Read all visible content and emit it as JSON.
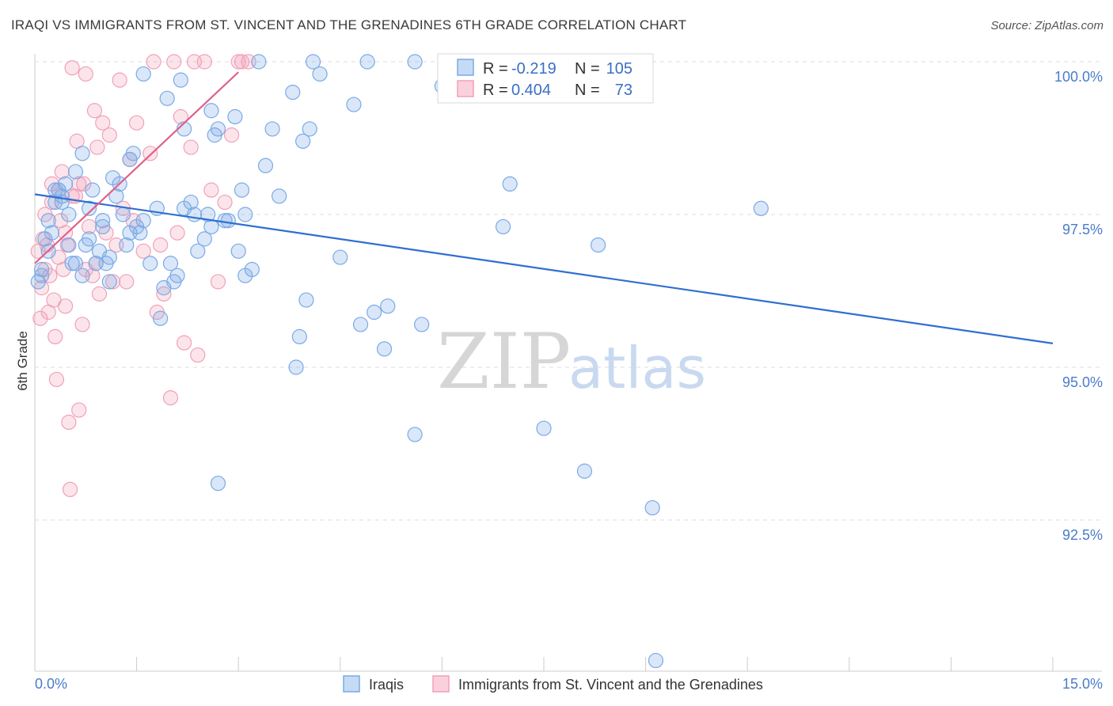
{
  "chart_data": {
    "type": "scatter",
    "title": "IRAQI VS IMMIGRANTS FROM ST. VINCENT AND THE GRENADINES 6TH GRADE CORRELATION CHART",
    "source": "Source: ZipAtlas.com",
    "ylabel": "6th Grade",
    "xlabel": "",
    "xlim": [
      0.0,
      15.0
    ],
    "ylim": [
      90.2,
      100.5
    ],
    "x_tick_labels": [
      "0.0%",
      "15.0%"
    ],
    "y_ticks": [
      100.0,
      97.5,
      95.0,
      92.5
    ],
    "y_tick_labels": [
      "100.0%",
      "97.5%",
      "95.0%",
      "92.5%"
    ],
    "grid": "horizontal dashed",
    "legend": {
      "rows": [
        {
          "r_label": "R =",
          "r_value": "-0.219",
          "n_label": "N =",
          "n_value": "105",
          "color": "#7aaae6"
        },
        {
          "r_label": "R =",
          "r_value": "0.404",
          "n_label": "N =",
          "n_value": "73",
          "color": "#f2a0b8"
        }
      ]
    },
    "watermark": {
      "zip": "ZIP",
      "atlas": "atlas"
    },
    "series": [
      {
        "name": "Iraqis",
        "color": "#7aaae6",
        "line_color": "#2f6fd0",
        "trend": {
          "x": [
            0.0,
            15.0
          ],
          "y": [
            97.83,
            95.39
          ]
        },
        "points": [
          [
            0.05,
            96.4
          ],
          [
            0.1,
            96.5
          ],
          [
            0.15,
            97.1
          ],
          [
            0.2,
            96.9
          ],
          [
            0.25,
            97.2
          ],
          [
            0.3,
            97.7
          ],
          [
            0.35,
            97.9
          ],
          [
            0.4,
            97.7
          ],
          [
            0.45,
            98.0
          ],
          [
            0.5,
            97.5
          ],
          [
            0.55,
            96.7
          ],
          [
            0.6,
            98.2
          ],
          [
            0.7,
            98.5
          ],
          [
            0.75,
            97.0
          ],
          [
            0.8,
            97.6
          ],
          [
            0.85,
            97.9
          ],
          [
            0.9,
            96.7
          ],
          [
            0.95,
            96.9
          ],
          [
            1.0,
            97.3
          ],
          [
            1.05,
            96.7
          ],
          [
            1.1,
            96.4
          ],
          [
            1.2,
            97.8
          ],
          [
            1.25,
            98.0
          ],
          [
            1.3,
            97.5
          ],
          [
            1.35,
            97.0
          ],
          [
            1.4,
            98.4
          ],
          [
            1.45,
            98.5
          ],
          [
            1.5,
            97.3
          ],
          [
            1.55,
            97.2
          ],
          [
            1.6,
            99.8
          ],
          [
            1.7,
            96.7
          ],
          [
            1.8,
            97.6
          ],
          [
            1.85,
            95.8
          ],
          [
            1.9,
            96.3
          ],
          [
            1.95,
            99.4
          ],
          [
            2.0,
            96.7
          ],
          [
            2.05,
            96.4
          ],
          [
            2.1,
            96.5
          ],
          [
            2.15,
            99.7
          ],
          [
            2.2,
            98.9
          ],
          [
            2.3,
            97.7
          ],
          [
            2.35,
            97.5
          ],
          [
            2.4,
            96.9
          ],
          [
            2.5,
            97.1
          ],
          [
            2.55,
            97.5
          ],
          [
            2.6,
            99.2
          ],
          [
            2.65,
            98.8
          ],
          [
            2.7,
            98.9
          ],
          [
            2.8,
            97.4
          ],
          [
            2.85,
            97.4
          ],
          [
            2.95,
            99.1
          ],
          [
            3.0,
            96.9
          ],
          [
            3.05,
            97.9
          ],
          [
            3.1,
            96.5
          ],
          [
            3.2,
            96.6
          ],
          [
            3.4,
            98.3
          ],
          [
            3.5,
            98.9
          ],
          [
            3.6,
            97.8
          ],
          [
            3.8,
            99.5
          ],
          [
            3.85,
            95.0
          ],
          [
            3.9,
            95.5
          ],
          [
            3.95,
            98.7
          ],
          [
            4.0,
            96.1
          ],
          [
            4.05,
            98.9
          ],
          [
            4.2,
            99.8
          ],
          [
            4.5,
            96.8
          ],
          [
            4.7,
            99.3
          ],
          [
            4.8,
            95.7
          ],
          [
            5.0,
            95.9
          ],
          [
            5.15,
            95.3
          ],
          [
            5.2,
            96.0
          ],
          [
            5.6,
            93.9
          ],
          [
            5.7,
            95.7
          ],
          [
            6.0,
            99.6
          ],
          [
            6.9,
            97.3
          ],
          [
            7.0,
            98.0
          ],
          [
            7.5,
            94.0
          ],
          [
            8.1,
            93.3
          ],
          [
            8.3,
            97.0
          ],
          [
            9.1,
            92.7
          ],
          [
            10.7,
            97.6
          ],
          [
            9.15,
            90.2
          ],
          [
            0.1,
            96.6
          ],
          [
            0.2,
            97.4
          ],
          [
            0.3,
            97.9
          ],
          [
            0.4,
            97.8
          ],
          [
            0.5,
            97.0
          ],
          [
            0.6,
            96.7
          ],
          [
            0.7,
            96.5
          ],
          [
            0.8,
            97.1
          ],
          [
            1.0,
            97.4
          ],
          [
            1.1,
            96.8
          ],
          [
            1.15,
            98.1
          ],
          [
            1.4,
            97.2
          ],
          [
            1.6,
            97.4
          ],
          [
            2.2,
            97.6
          ],
          [
            2.7,
            93.1
          ],
          [
            3.3,
            100.0
          ],
          [
            4.1,
            100.0
          ],
          [
            4.9,
            100.0
          ],
          [
            5.6,
            100.0
          ],
          [
            6.4,
            100.0
          ],
          [
            8.1,
            100.0
          ],
          [
            2.6,
            97.3
          ],
          [
            3.1,
            97.5
          ]
        ]
      },
      {
        "name": "Immigrants from St. Vincent and the Grenadines",
        "color": "#f2a0b8",
        "line_color": "#e0608a",
        "trend": {
          "x": [
            0.0,
            3.0
          ],
          "y": [
            96.7,
            99.83
          ]
        },
        "points": [
          [
            0.05,
            96.9
          ],
          [
            0.08,
            95.8
          ],
          [
            0.1,
            96.3
          ],
          [
            0.12,
            97.1
          ],
          [
            0.15,
            96.6
          ],
          [
            0.18,
            97.0
          ],
          [
            0.2,
            95.9
          ],
          [
            0.22,
            96.5
          ],
          [
            0.25,
            97.7
          ],
          [
            0.28,
            96.1
          ],
          [
            0.3,
            95.5
          ],
          [
            0.32,
            94.8
          ],
          [
            0.35,
            97.9
          ],
          [
            0.38,
            97.4
          ],
          [
            0.4,
            98.2
          ],
          [
            0.42,
            96.6
          ],
          [
            0.45,
            96.0
          ],
          [
            0.48,
            97.0
          ],
          [
            0.5,
            94.1
          ],
          [
            0.52,
            93.0
          ],
          [
            0.55,
            99.9
          ],
          [
            0.6,
            97.8
          ],
          [
            0.62,
            98.7
          ],
          [
            0.65,
            94.3
          ],
          [
            0.7,
            95.7
          ],
          [
            0.72,
            98.0
          ],
          [
            0.75,
            99.8
          ],
          [
            0.8,
            97.3
          ],
          [
            0.85,
            96.5
          ],
          [
            0.88,
            99.2
          ],
          [
            0.9,
            96.7
          ],
          [
            0.92,
            98.6
          ],
          [
            0.95,
            96.2
          ],
          [
            1.0,
            99.0
          ],
          [
            1.05,
            97.2
          ],
          [
            1.1,
            98.8
          ],
          [
            1.15,
            96.4
          ],
          [
            1.2,
            97.0
          ],
          [
            1.25,
            99.7
          ],
          [
            1.3,
            97.6
          ],
          [
            1.35,
            96.4
          ],
          [
            1.4,
            98.4
          ],
          [
            1.45,
            97.4
          ],
          [
            1.5,
            99.0
          ],
          [
            1.6,
            96.9
          ],
          [
            1.7,
            98.5
          ],
          [
            1.75,
            100.0
          ],
          [
            1.8,
            95.9
          ],
          [
            1.85,
            97.0
          ],
          [
            1.9,
            96.2
          ],
          [
            2.0,
            94.5
          ],
          [
            2.05,
            100.0
          ],
          [
            2.1,
            97.2
          ],
          [
            2.15,
            99.1
          ],
          [
            2.2,
            95.4
          ],
          [
            2.3,
            98.6
          ],
          [
            2.35,
            100.0
          ],
          [
            2.4,
            95.2
          ],
          [
            2.5,
            100.0
          ],
          [
            2.6,
            97.9
          ],
          [
            2.7,
            96.4
          ],
          [
            2.8,
            97.7
          ],
          [
            2.9,
            98.8
          ],
          [
            3.0,
            100.0
          ],
          [
            3.05,
            100.0
          ],
          [
            3.15,
            100.0
          ],
          [
            0.15,
            97.5
          ],
          [
            0.25,
            98.0
          ],
          [
            0.35,
            96.8
          ],
          [
            0.45,
            97.2
          ],
          [
            0.55,
            97.8
          ],
          [
            0.65,
            98.0
          ],
          [
            0.75,
            96.6
          ]
        ]
      }
    ]
  }
}
